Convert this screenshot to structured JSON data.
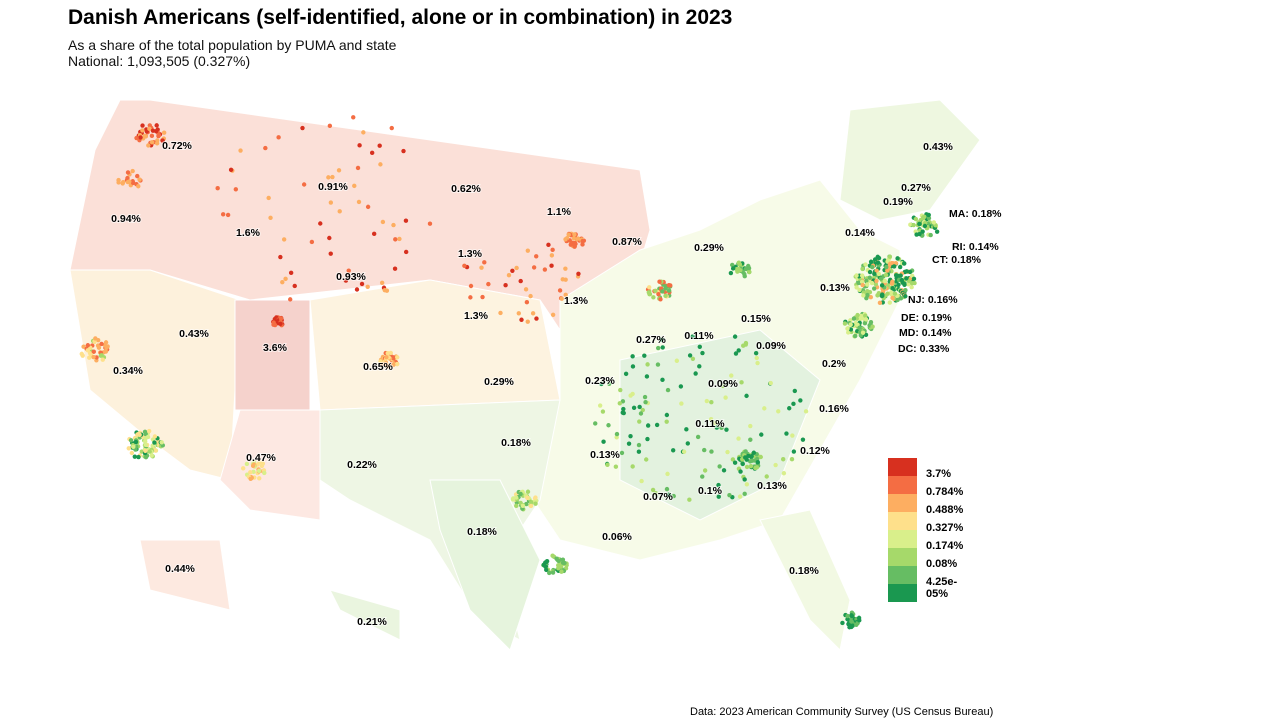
{
  "title": "Danish Americans (self-identified, alone or in combination) in 2023",
  "subtitle": "As a share of the total population by PUMA and state",
  "national": "National: 1,093,505 (0.327%)",
  "caption": "Data: 2023 American Community Survey (US Census Bureau)",
  "legend": {
    "colors": [
      "#d7301f",
      "#f46d43",
      "#fdae61",
      "#fee08b",
      "#d9ef8b",
      "#a6d96a",
      "#66bd63",
      "#1a9850"
    ],
    "labels": [
      "3.7%",
      "0.784%",
      "0.488%",
      "0.327%",
      "0.174%",
      "0.08%",
      "4.25e-05%"
    ]
  },
  "states": {
    "WA": "0.72%",
    "OR": "0.94%",
    "ID": "1.6%",
    "MT": "0.91%",
    "WY": "0.93%",
    "ND": "0.62%",
    "SD": "1.3%",
    "NE": "1.3%",
    "MN": "1.1%",
    "WI": "0.87%",
    "MI": "0.29%",
    "IA": "1.3%",
    "NV": "0.43%",
    "UT": "3.6%",
    "CO": "0.65%",
    "CA": "0.34%",
    "KS": "0.29%",
    "MO": "0.23%",
    "IL": "0.27%",
    "IN": "0.11%",
    "OH": "0.15%",
    "PA": "0.13%",
    "NY": "0.14%",
    "VT": "0.19%",
    "NH": "0.27%",
    "ME": "0.43%",
    "WV": "0.09%",
    "VA": "0.2%",
    "KY": "0.09%",
    "NC": "0.16%",
    "TN": "0.11%",
    "SC": "0.12%",
    "GA": "0.13%",
    "AL": "0.1%",
    "MS": "0.07%",
    "AR": "0.13%",
    "LA": "0.06%",
    "OK": "0.18%",
    "TX": "0.18%",
    "NM": "0.22%",
    "AZ": "0.47%",
    "FL": "0.18%",
    "AK": "0.44%",
    "HI": "0.21%"
  },
  "small_states": {
    "MA": "MA: 0.18%",
    "RI": "RI: 0.14%",
    "CT": "CT: 0.18%",
    "NJ": "NJ: 0.16%",
    "DE": "DE: 0.19%",
    "MD": "MD: 0.14%",
    "DC": "DC: 0.33%"
  }
}
